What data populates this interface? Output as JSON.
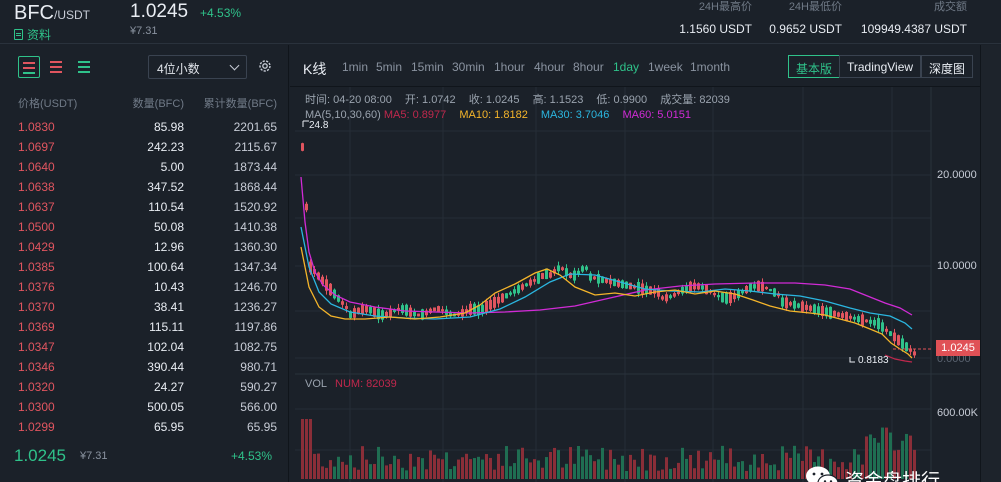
{
  "header": {
    "base": "BFC",
    "quote": "/USDT",
    "info_label": "资料",
    "last_price": "1.0245",
    "change": "+4.53%",
    "cny": "¥7.31",
    "stats": [
      {
        "label": "24H最高价",
        "value": "1.1560 USDT"
      },
      {
        "label": "24H最低价",
        "value": "0.9652 USDT"
      },
      {
        "label": "成交额",
        "value": "109949.4387 USDT"
      }
    ]
  },
  "orderbook": {
    "decimal_label": "4位小数",
    "columns": [
      "价格(USDT)",
      "数量(BFC)",
      "累计数量(BFC)"
    ],
    "asks": [
      {
        "price": "1.0830",
        "amount": "85.98",
        "cum": "2201.65"
      },
      {
        "price": "1.0697",
        "amount": "242.23",
        "cum": "2115.67"
      },
      {
        "price": "1.0640",
        "amount": "5.00",
        "cum": "1873.44"
      },
      {
        "price": "1.0638",
        "amount": "347.52",
        "cum": "1868.44"
      },
      {
        "price": "1.0637",
        "amount": "110.54",
        "cum": "1520.92"
      },
      {
        "price": "1.0500",
        "amount": "50.08",
        "cum": "1410.38"
      },
      {
        "price": "1.0429",
        "amount": "12.96",
        "cum": "1360.30"
      },
      {
        "price": "1.0385",
        "amount": "100.64",
        "cum": "1347.34"
      },
      {
        "price": "1.0376",
        "amount": "10.43",
        "cum": "1246.70"
      },
      {
        "price": "1.0370",
        "amount": "38.41",
        "cum": "1236.27"
      },
      {
        "price": "1.0369",
        "amount": "115.11",
        "cum": "1197.86"
      },
      {
        "price": "1.0347",
        "amount": "102.04",
        "cum": "1082.75"
      },
      {
        "price": "1.0346",
        "amount": "390.44",
        "cum": "980.71"
      },
      {
        "price": "1.0320",
        "amount": "24.27",
        "cum": "590.27"
      },
      {
        "price": "1.0300",
        "amount": "500.05",
        "cum": "566.00"
      },
      {
        "price": "1.0299",
        "amount": "65.95",
        "cum": "65.95"
      }
    ],
    "last_price": "1.0245",
    "last_cny": "¥7.31",
    "last_change": "+4.53%"
  },
  "chart": {
    "title": "K线",
    "intervals": [
      "1min",
      "5min",
      "15min",
      "30min",
      "1hour",
      "4hour",
      "8hour",
      "1day",
      "1week",
      "1month"
    ],
    "active_interval": "1day",
    "modes": [
      "基本版",
      "TradingView",
      "深度图"
    ],
    "active_mode": "基本版",
    "ohlc": {
      "time": "时间: 04-20 08:00",
      "open": "开: 1.0742",
      "close": "收: 1.0245",
      "high": "高: 1.1523",
      "low": "低: 0.9900",
      "volume": "成交量: 82039"
    },
    "ma": {
      "label": "MA(5,10,30,60)",
      "ma5": "MA5: 0.8977",
      "ma10": "MA10: 1.8182",
      "ma30": "MA30: 3.7046",
      "ma60": "MA60: 5.0151"
    },
    "colors": {
      "ma5": "#c0284d",
      "ma10": "#f5b52a",
      "ma30": "#2bb6e0",
      "ma60": "#d12bd6",
      "up": "#2fc28a",
      "down": "#e0555f"
    },
    "axis": {
      "y1": "20.0000",
      "y2": "10.0000",
      "y3": "0.0000",
      "vol": "600.00K"
    },
    "current_price_tag": "1.0245",
    "max_label": "24.8",
    "min_label": "0.8183",
    "vol_label": "VOL",
    "vol_num": "NUM: 82039",
    "watermark": "资金盘排行"
  }
}
